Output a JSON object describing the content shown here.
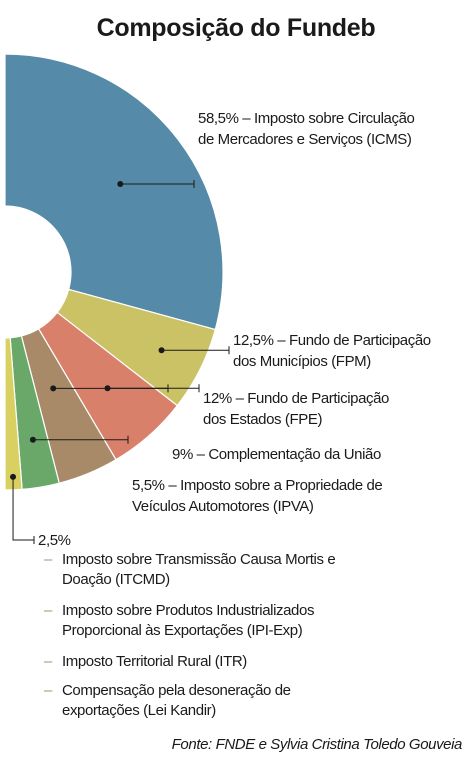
{
  "chart_data": {
    "type": "pie",
    "title": "Composição do Fundeb",
    "style": "half-donut",
    "slices": [
      {
        "value": 58.5,
        "label": "58,5% – Imposto sobre Circulação de Mercadores e Serviços (ICMS)",
        "line1": "58,5% – Imposto sobre Circulação",
        "line2": "de Mercadores e Serviços (ICMS)",
        "color": "#558ba8"
      },
      {
        "value": 12.5,
        "label": "12,5% – Fundo de Participação dos Municípios (FPM)",
        "line1": "12,5% – Fundo de Participação",
        "line2": "dos Municípios (FPM)",
        "color": "#cbc265"
      },
      {
        "value": 12,
        "label": "12% – Fundo de Participação dos Estados (FPE)",
        "line1": "12% – Fundo de Participação",
        "line2": "dos Estados (FPE)",
        "color": "#d8806a"
      },
      {
        "value": 9,
        "label": "9% – Complementação da União",
        "line1": "9% – Complementação da União",
        "line2": "",
        "color": "#a88a68"
      },
      {
        "value": 5.5,
        "label": "5,5% – Imposto sobre a Propriedade de Veículos Automotores (IPVA)",
        "line1": "5,5% – Imposto sobre a Propriedade de",
        "line2": "Veículos Automotores (IPVA)",
        "color": "#6aa86a"
      },
      {
        "value": 2.5,
        "label": "2,5%",
        "line1": "2,5%",
        "line2": "",
        "color": "#d8d060"
      }
    ],
    "sub_items": [
      "Imposto sobre Transmissão Causa Mortis e Doação (ITCMD)",
      "Imposto sobre Produtos Industrializados Proporcional às Exportações (IPI-Exp)",
      "Imposto Territorial Rural (ITR)",
      "Compensação pela desoneração de exportações (Lei Kandir)"
    ],
    "sub_lines": [
      [
        "Imposto sobre Transmissão Causa Mortis e",
        "Doação (ITCMD)"
      ],
      [
        "Imposto sobre Produtos Industrializados",
        "Proporcional às Exportações (IPI-Exp)"
      ],
      [
        "Imposto Territorial Rural (ITR)"
      ],
      [
        "Compensação pela desoneração de",
        "exportações (Lei Kandir)"
      ]
    ],
    "sub_dash": "–",
    "source": "Fonte: FNDE e Sylvia Cristina Toledo Gouveia"
  }
}
